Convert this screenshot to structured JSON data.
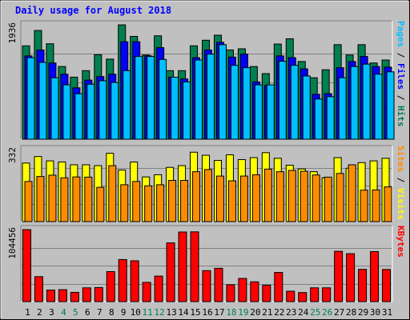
{
  "chart_data": {
    "type": "bar",
    "title": "Daily usage for August 2018",
    "colors": {
      "title": "#0000ff",
      "background": "#c0c0c0",
      "frame": "#888888",
      "hits": "#007f4f",
      "files": "#0000ff",
      "pages": "#00bfff",
      "visits": "#ffff00",
      "sites": "#ff8c00",
      "kbytes": "#ff0000",
      "weekend_day": "#007f4f",
      "weekday": "#000000"
    },
    "categories": [
      "1",
      "2",
      "3",
      "4",
      "5",
      "6",
      "7",
      "8",
      "9",
      "10",
      "11",
      "12",
      "13",
      "14",
      "15",
      "16",
      "17",
      "18",
      "19",
      "20",
      "21",
      "22",
      "23",
      "24",
      "25",
      "26",
      "27",
      "28",
      "29",
      "30",
      "31"
    ],
    "weekend_days": [
      4,
      5,
      11,
      12,
      18,
      19,
      25,
      26
    ],
    "panels": [
      {
        "id": "hits-files-pages",
        "max_label": "1936",
        "ymax": 1936,
        "legend": [
          {
            "text": "Pages",
            "color": "#00bfff"
          },
          {
            "text": " / ",
            "color": "#000000"
          },
          {
            "text": "Files",
            "color": "#0000ff"
          },
          {
            "text": " / ",
            "color": "#000000"
          },
          {
            "text": "Hits",
            "color": "#007f4f"
          }
        ],
        "series": [
          {
            "name": "Hits",
            "color": "#007f4f",
            "values": [
              1580,
              1840,
              1615,
              1230,
              1050,
              1160,
              1430,
              1355,
              1935,
              1740,
              1425,
              1750,
              1160,
              1160,
              1580,
              1675,
              1760,
              1510,
              1530,
              1230,
              1110,
              1610,
              1700,
              1315,
              1040,
              1175,
              1600,
              1425,
              1600,
              1290,
              1340
            ]
          },
          {
            "name": "Files",
            "color": "#0000ff",
            "values": [
              1410,
              1510,
              1290,
              1100,
              870,
              1000,
              1060,
              1100,
              1650,
              1650,
              1410,
              1550,
              1050,
              1020,
              1380,
              1510,
              1640,
              1390,
              1440,
              970,
              910,
              1410,
              1380,
              1190,
              760,
              770,
              1210,
              1315,
              1400,
              1230,
              1220
            ]
          },
          {
            "name": "Pages",
            "color": "#00bfff",
            "values": [
              1380,
              1300,
              1040,
              920,
              770,
              930,
              990,
              960,
              1160,
              1400,
              1400,
              1350,
              1050,
              970,
              1340,
              1440,
              1600,
              1250,
              1210,
              920,
              920,
              1320,
              1250,
              1070,
              680,
              720,
              1040,
              1230,
              1270,
              1100,
              1140
            ]
          }
        ]
      },
      {
        "id": "visits-sites",
        "max_label": "332",
        "ymax": 332,
        "legend": [
          {
            "text": "Sites",
            "color": "#ff8c00"
          },
          {
            "text": " / ",
            "color": "#000000"
          },
          {
            "text": "Visits",
            "color": "#ffff00"
          }
        ],
        "series": [
          {
            "name": "Visits",
            "color": "#ffff00",
            "values": [
              270,
              300,
              280,
              275,
              262,
              262,
              258,
              315,
              238,
              275,
              206,
              216,
              250,
              258,
              320,
              306,
              282,
              308,
              286,
              295,
              318,
              292,
              260,
              243,
              230,
              202,
              295,
              246,
              272,
              280,
              292
            ]
          },
          {
            "name": "Sites",
            "color": "#ff8c00",
            "values": [
              185,
              208,
              214,
              202,
              206,
              205,
              158,
              258,
              170,
              185,
              165,
              170,
              190,
              190,
              230,
              240,
              210,
              188,
              210,
              216,
              242,
              230,
              236,
              232,
              215,
              205,
              222,
              262,
              145,
              146,
              160
            ]
          }
        ]
      },
      {
        "id": "kbytes",
        "max_label": "104456",
        "ymax": 104456,
        "legend": [
          {
            "text": "KBytes",
            "color": "#ff0000"
          }
        ],
        "series": [
          {
            "name": "KBytes",
            "color": "#ff0000",
            "values": [
              104456,
              36200,
              16800,
              17300,
              13400,
              20000,
              20400,
              43500,
              61000,
              59200,
              27900,
              37000,
              85200,
              101000,
              101200,
              44900,
              48300,
              24500,
              33600,
              28700,
              23800,
              42300,
              15100,
              13100,
              20000,
              20000,
              73000,
              69500,
              46800,
              72600,
              46600
            ]
          }
        ]
      }
    ]
  }
}
